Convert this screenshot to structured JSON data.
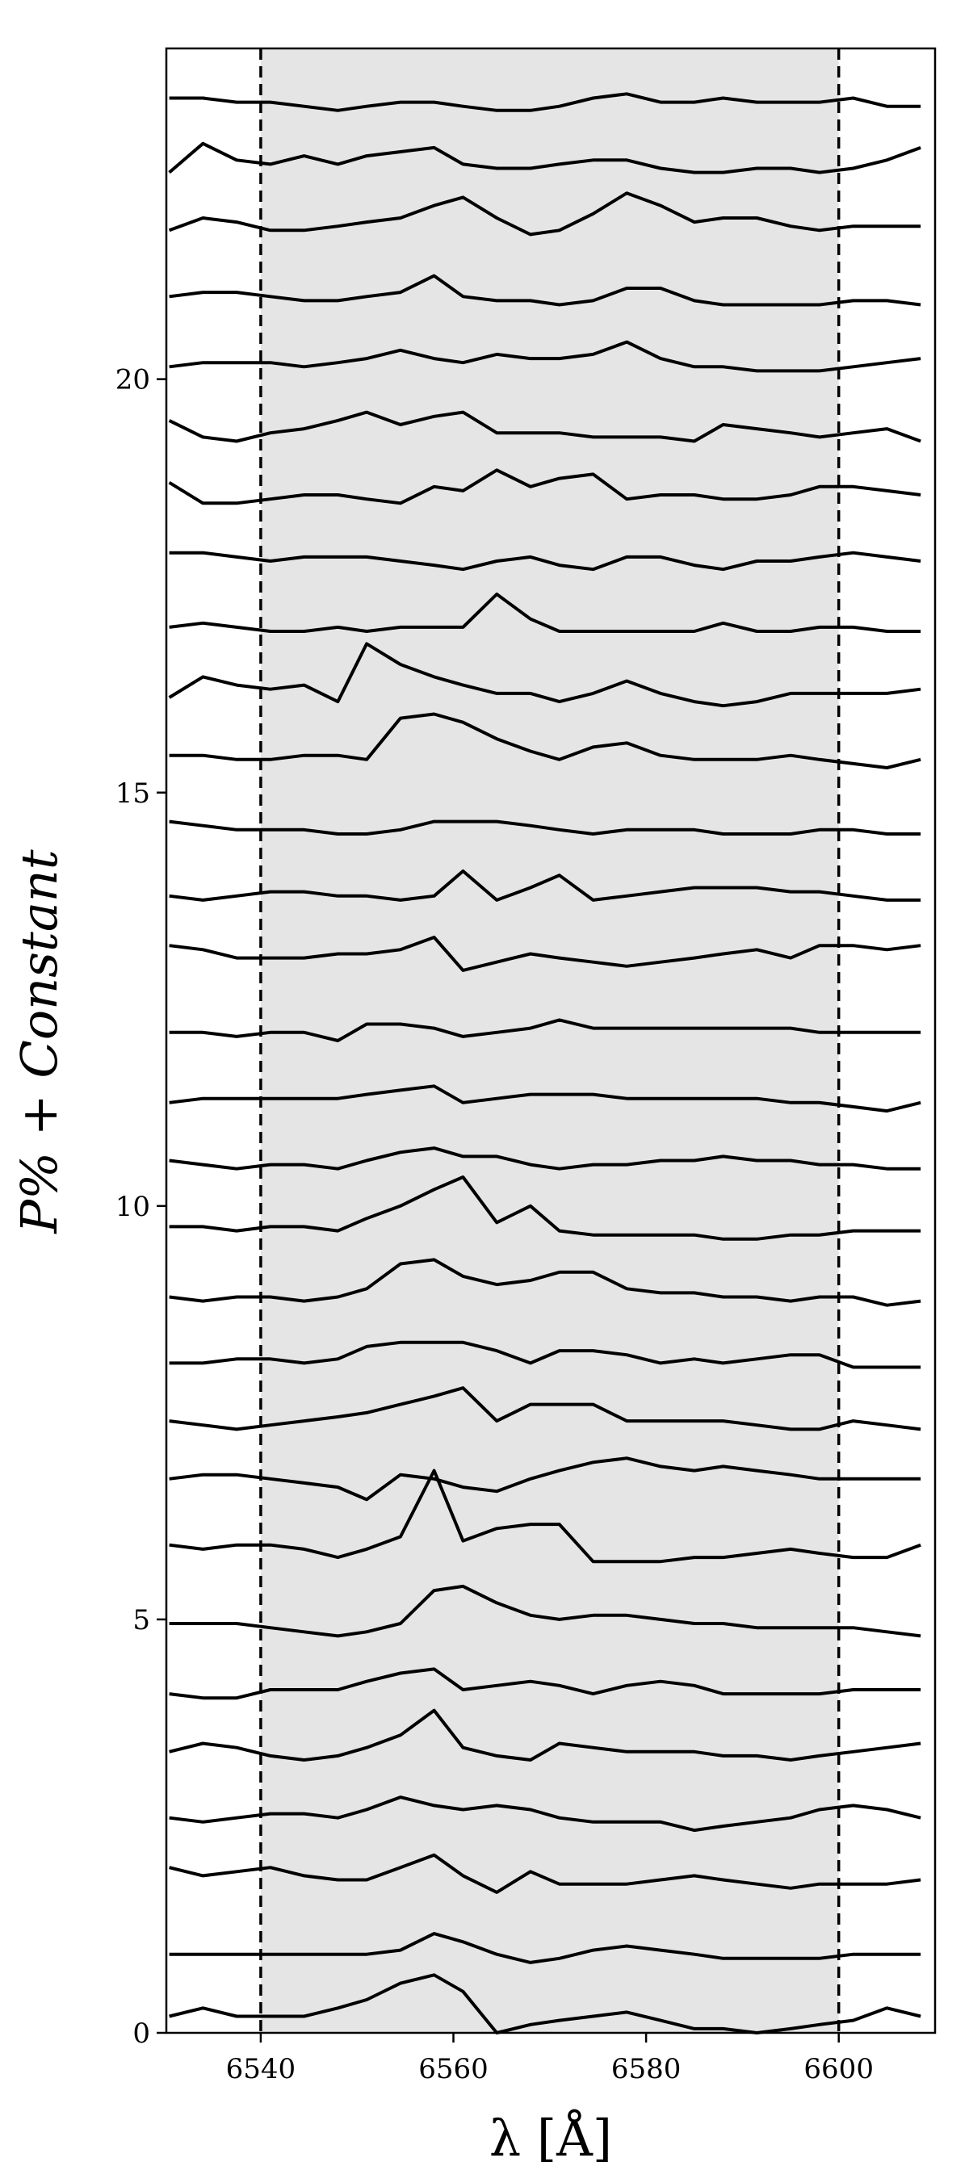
{
  "chart_data": {
    "type": "line",
    "xlabel": "λ [Å]",
    "ylabel": "P% + Constant",
    "color": "#000000",
    "xlim": [
      6530.2,
      6610
    ],
    "ylim": [
      0,
      24
    ],
    "xticks": [
      6540,
      6560,
      6580,
      6600
    ],
    "yticks": [
      0,
      5,
      10,
      15,
      20
    ],
    "span": {
      "range": [
        6540,
        6600
      ],
      "color": "#e5e5e5"
    },
    "x": [
      6530.5,
      6534,
      6537.5,
      6541,
      6544.5,
      6548,
      6551,
      6554.5,
      6558,
      6561,
      6564.5,
      6568,
      6571,
      6574.5,
      6578,
      6581.5,
      6585,
      6588,
      6591.5,
      6595,
      6598,
      6601.5,
      6605,
      6608.5
    ],
    "series": [
      {
        "values": [
          0.2,
          0.3,
          0.2,
          0.2,
          0.2,
          0.3,
          0.4,
          0.6,
          0.7,
          0.5,
          0.0,
          0.1,
          0.15,
          0.2,
          0.25,
          0.15,
          0.05,
          0.05,
          0.0,
          0.05,
          0.1,
          0.15,
          0.3,
          0.2
        ]
      },
      {
        "values": [
          0.95,
          0.95,
          0.95,
          0.95,
          0.95,
          0.95,
          0.95,
          1.0,
          1.2,
          1.1,
          0.95,
          0.85,
          0.9,
          1.0,
          1.05,
          1.0,
          0.95,
          0.9,
          0.9,
          0.9,
          0.9,
          0.95,
          0.95,
          0.95
        ]
      },
      {
        "values": [
          2.0,
          1.9,
          1.95,
          2.0,
          1.9,
          1.85,
          1.85,
          2.0,
          2.15,
          1.9,
          1.7,
          1.95,
          1.8,
          1.8,
          1.8,
          1.85,
          1.9,
          1.85,
          1.8,
          1.75,
          1.8,
          1.8,
          1.8,
          1.85
        ]
      },
      {
        "values": [
          2.6,
          2.55,
          2.6,
          2.65,
          2.65,
          2.6,
          2.7,
          2.85,
          2.75,
          2.7,
          2.75,
          2.7,
          2.6,
          2.55,
          2.55,
          2.55,
          2.45,
          2.5,
          2.55,
          2.6,
          2.7,
          2.75,
          2.7,
          2.6
        ]
      },
      {
        "values": [
          3.4,
          3.5,
          3.45,
          3.35,
          3.3,
          3.35,
          3.45,
          3.6,
          3.9,
          3.45,
          3.35,
          3.3,
          3.5,
          3.45,
          3.4,
          3.4,
          3.4,
          3.35,
          3.35,
          3.3,
          3.35,
          3.4,
          3.45,
          3.5
        ]
      },
      {
        "values": [
          4.1,
          4.05,
          4.05,
          4.15,
          4.15,
          4.15,
          4.25,
          4.35,
          4.4,
          4.15,
          4.2,
          4.25,
          4.2,
          4.1,
          4.2,
          4.25,
          4.2,
          4.1,
          4.1,
          4.1,
          4.1,
          4.15,
          4.15,
          4.15
        ]
      },
      {
        "values": [
          4.95,
          4.95,
          4.95,
          4.9,
          4.85,
          4.8,
          4.85,
          4.95,
          5.35,
          5.4,
          5.2,
          5.05,
          5.0,
          5.05,
          5.05,
          5.0,
          4.95,
          4.95,
          4.9,
          4.9,
          4.9,
          4.9,
          4.85,
          4.8
        ]
      },
      {
        "values": [
          5.9,
          5.85,
          5.9,
          5.9,
          5.85,
          5.75,
          5.85,
          6.0,
          6.8,
          5.95,
          6.1,
          6.15,
          6.15,
          5.7,
          5.7,
          5.7,
          5.75,
          5.75,
          5.8,
          5.85,
          5.8,
          5.75,
          5.75,
          5.9
        ]
      },
      {
        "values": [
          6.7,
          6.75,
          6.75,
          6.7,
          6.65,
          6.6,
          6.45,
          6.75,
          6.7,
          6.6,
          6.55,
          6.7,
          6.8,
          6.9,
          6.95,
          6.85,
          6.8,
          6.85,
          6.8,
          6.75,
          6.7,
          6.7,
          6.7,
          6.7
        ]
      },
      {
        "values": [
          7.4,
          7.35,
          7.3,
          7.35,
          7.4,
          7.45,
          7.5,
          7.6,
          7.7,
          7.8,
          7.4,
          7.6,
          7.6,
          7.6,
          7.4,
          7.4,
          7.4,
          7.4,
          7.35,
          7.3,
          7.3,
          7.4,
          7.35,
          7.3
        ]
      },
      {
        "values": [
          8.1,
          8.1,
          8.15,
          8.15,
          8.1,
          8.15,
          8.3,
          8.35,
          8.35,
          8.35,
          8.25,
          8.1,
          8.25,
          8.25,
          8.2,
          8.1,
          8.15,
          8.1,
          8.15,
          8.2,
          8.2,
          8.05,
          8.05,
          8.05
        ]
      },
      {
        "values": [
          8.9,
          8.85,
          8.9,
          8.9,
          8.85,
          8.9,
          9.0,
          9.3,
          9.35,
          9.15,
          9.05,
          9.1,
          9.2,
          9.2,
          9.0,
          8.95,
          8.95,
          8.9,
          8.9,
          8.85,
          8.9,
          8.9,
          8.8,
          8.85
        ]
      },
      {
        "values": [
          9.75,
          9.75,
          9.7,
          9.75,
          9.75,
          9.7,
          9.85,
          10.0,
          10.2,
          10.35,
          9.8,
          10.0,
          9.7,
          9.65,
          9.65,
          9.65,
          9.65,
          9.6,
          9.6,
          9.65,
          9.65,
          9.7,
          9.7,
          9.7
        ]
      },
      {
        "values": [
          10.55,
          10.5,
          10.45,
          10.5,
          10.5,
          10.45,
          10.55,
          10.65,
          10.7,
          10.6,
          10.6,
          10.5,
          10.45,
          10.5,
          10.5,
          10.55,
          10.55,
          10.6,
          10.55,
          10.55,
          10.5,
          10.5,
          10.45,
          10.45
        ]
      },
      {
        "values": [
          11.25,
          11.3,
          11.3,
          11.3,
          11.3,
          11.3,
          11.35,
          11.4,
          11.45,
          11.25,
          11.3,
          11.35,
          11.35,
          11.35,
          11.3,
          11.3,
          11.3,
          11.3,
          11.3,
          11.25,
          11.25,
          11.2,
          11.15,
          11.25
        ]
      },
      {
        "values": [
          12.1,
          12.1,
          12.05,
          12.1,
          12.1,
          12.0,
          12.2,
          12.2,
          12.15,
          12.05,
          12.1,
          12.15,
          12.25,
          12.15,
          12.15,
          12.15,
          12.15,
          12.15,
          12.15,
          12.15,
          12.1,
          12.1,
          12.1,
          12.1
        ]
      },
      {
        "values": [
          13.15,
          13.1,
          13.0,
          13.0,
          13.0,
          13.05,
          13.05,
          13.1,
          13.25,
          12.85,
          12.95,
          13.05,
          13.0,
          12.95,
          12.9,
          12.95,
          13.0,
          13.05,
          13.1,
          13.0,
          13.15,
          13.15,
          13.1,
          13.15
        ]
      },
      {
        "values": [
          13.75,
          13.7,
          13.75,
          13.8,
          13.8,
          13.75,
          13.75,
          13.7,
          13.75,
          14.05,
          13.7,
          13.85,
          14.0,
          13.7,
          13.75,
          13.8,
          13.85,
          13.85,
          13.85,
          13.8,
          13.8,
          13.75,
          13.7,
          13.7
        ]
      },
      {
        "values": [
          14.65,
          14.6,
          14.55,
          14.55,
          14.55,
          14.5,
          14.5,
          14.55,
          14.65,
          14.65,
          14.65,
          14.6,
          14.55,
          14.5,
          14.55,
          14.55,
          14.55,
          14.5,
          14.5,
          14.5,
          14.55,
          14.55,
          14.5,
          14.5
        ]
      },
      {
        "values": [
          15.45,
          15.45,
          15.4,
          15.4,
          15.45,
          15.45,
          15.4,
          15.9,
          15.95,
          15.85,
          15.65,
          15.5,
          15.4,
          15.55,
          15.6,
          15.45,
          15.4,
          15.4,
          15.4,
          15.45,
          15.4,
          15.35,
          15.3,
          15.4
        ]
      },
      {
        "values": [
          16.15,
          16.4,
          16.3,
          16.25,
          16.3,
          16.1,
          16.8,
          16.55,
          16.4,
          16.3,
          16.2,
          16.2,
          16.1,
          16.2,
          16.35,
          16.2,
          16.1,
          16.05,
          16.1,
          16.2,
          16.2,
          16.2,
          16.2,
          16.25
        ]
      },
      {
        "values": [
          17.0,
          17.05,
          17.0,
          16.95,
          16.95,
          17.0,
          16.95,
          17.0,
          17.0,
          17.0,
          17.4,
          17.1,
          16.95,
          16.95,
          16.95,
          16.95,
          16.95,
          17.05,
          16.95,
          16.95,
          17.0,
          17.0,
          16.95,
          16.95
        ]
      },
      {
        "values": [
          17.9,
          17.9,
          17.85,
          17.8,
          17.85,
          17.85,
          17.85,
          17.8,
          17.75,
          17.7,
          17.8,
          17.85,
          17.75,
          17.7,
          17.85,
          17.85,
          17.75,
          17.7,
          17.8,
          17.8,
          17.85,
          17.9,
          17.85,
          17.8
        ]
      },
      {
        "values": [
          18.75,
          18.5,
          18.5,
          18.55,
          18.6,
          18.6,
          18.55,
          18.5,
          18.7,
          18.65,
          18.9,
          18.7,
          18.8,
          18.85,
          18.55,
          18.6,
          18.6,
          18.55,
          18.55,
          18.6,
          18.7,
          18.7,
          18.65,
          18.6
        ]
      },
      {
        "values": [
          19.5,
          19.3,
          19.25,
          19.35,
          19.4,
          19.5,
          19.6,
          19.45,
          19.55,
          19.6,
          19.35,
          19.35,
          19.35,
          19.3,
          19.3,
          19.3,
          19.25,
          19.45,
          19.4,
          19.35,
          19.3,
          19.35,
          19.4,
          19.25
        ]
      },
      {
        "values": [
          20.15,
          20.2,
          20.2,
          20.2,
          20.15,
          20.2,
          20.25,
          20.35,
          20.25,
          20.2,
          20.3,
          20.25,
          20.25,
          20.3,
          20.45,
          20.25,
          20.15,
          20.15,
          20.1,
          20.1,
          20.1,
          20.15,
          20.2,
          20.25
        ]
      },
      {
        "values": [
          21.0,
          21.05,
          21.05,
          21.0,
          20.95,
          20.95,
          21.0,
          21.05,
          21.25,
          21.0,
          20.95,
          20.95,
          20.9,
          20.95,
          21.1,
          21.1,
          20.95,
          20.9,
          20.9,
          20.9,
          20.9,
          20.95,
          20.95,
          20.9
        ]
      },
      {
        "values": [
          21.8,
          21.95,
          21.9,
          21.8,
          21.8,
          21.85,
          21.9,
          21.95,
          22.1,
          22.2,
          21.95,
          21.75,
          21.8,
          22.0,
          22.25,
          22.1,
          21.9,
          21.95,
          21.95,
          21.85,
          21.8,
          21.85,
          21.85,
          21.85
        ]
      },
      {
        "values": [
          22.5,
          22.85,
          22.65,
          22.6,
          22.7,
          22.6,
          22.7,
          22.75,
          22.8,
          22.6,
          22.55,
          22.55,
          22.6,
          22.65,
          22.65,
          22.55,
          22.5,
          22.5,
          22.55,
          22.55,
          22.5,
          22.55,
          22.65,
          22.8
        ]
      },
      {
        "values": [
          23.4,
          23.4,
          23.35,
          23.35,
          23.3,
          23.25,
          23.3,
          23.35,
          23.35,
          23.3,
          23.25,
          23.25,
          23.3,
          23.4,
          23.45,
          23.35,
          23.35,
          23.4,
          23.35,
          23.35,
          23.35,
          23.4,
          23.3,
          23.3
        ]
      }
    ]
  }
}
